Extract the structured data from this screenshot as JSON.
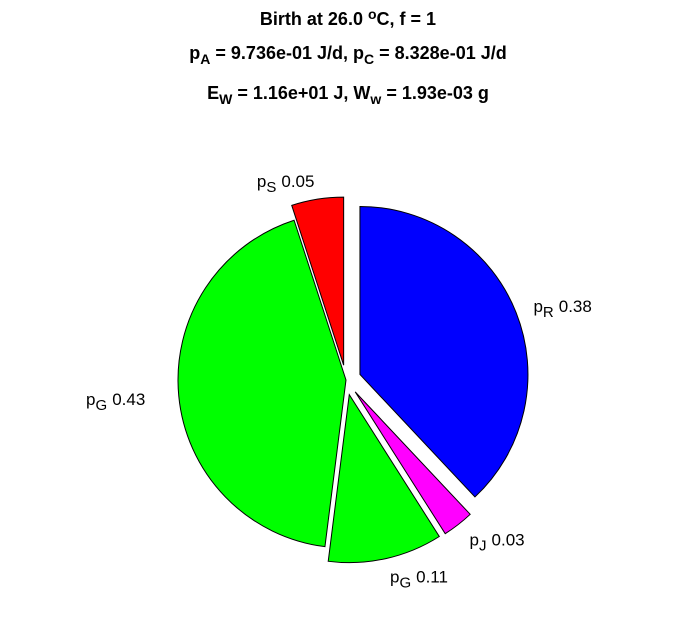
{
  "chart_data": {
    "type": "pie",
    "title_lines": [
      [
        {
          "text": "Birth at 26.0 "
        },
        {
          "text": "o",
          "script": "sup"
        },
        {
          "text": "C, f = 1"
        }
      ],
      [
        {
          "text": "p"
        },
        {
          "text": "A",
          "script": "sub"
        },
        {
          "text": " = 9.736e-01 J/d, p"
        },
        {
          "text": "C",
          "script": "sub"
        },
        {
          "text": " = 8.328e-01 J/d"
        }
      ],
      [
        {
          "text": "E"
        },
        {
          "text": "W",
          "script": "sub"
        },
        {
          "text": " = 1.16e+01 J, W"
        },
        {
          "text": "w",
          "script": "sub"
        },
        {
          "text": " = 1.93e-03 g"
        }
      ]
    ],
    "categories": [
      {
        "text": "p",
        "sub": "R"
      },
      {
        "text": "p",
        "sub": "J"
      },
      {
        "text": "p",
        "sub": "G"
      },
      {
        "text": "p",
        "sub": "G"
      },
      {
        "text": "p",
        "sub": "S"
      }
    ],
    "values": [
      0.38,
      0.03,
      0.11,
      0.43,
      0.05
    ],
    "colors": [
      "#0000ff",
      "#ff00ff",
      "#00ff00",
      "#00ff00",
      "#ff0000"
    ],
    "explode": [
      true,
      true,
      true,
      false,
      true
    ]
  }
}
